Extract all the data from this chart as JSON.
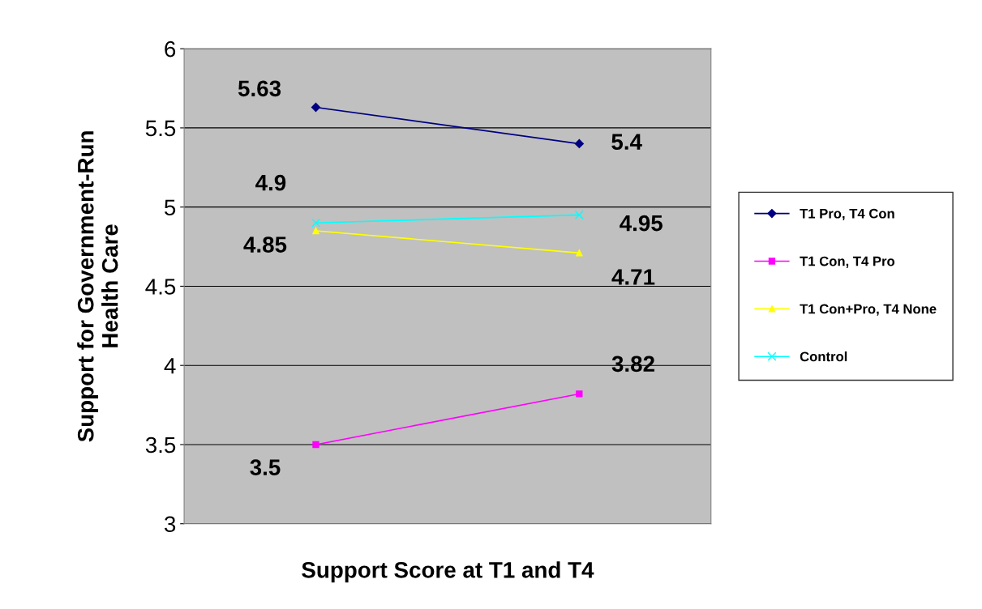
{
  "chart_data": {
    "type": "line",
    "xlabel": "Support Score at T1 and T4",
    "ylabel": "Support for Government-Run\nHealth Care",
    "categories": [
      null,
      null
    ],
    "ylim": [
      3,
      6
    ],
    "yticks": [
      3,
      3.5,
      4,
      4.5,
      5,
      5.5,
      6
    ],
    "grid": "y",
    "legend": "right",
    "data_labels": true,
    "line_style": "solid",
    "series": [
      {
        "name": "T1 Pro, T4 Con",
        "color": "#000080",
        "marker": "diamond",
        "values": [
          5.63,
          5.4
        ]
      },
      {
        "name": "T1 Con, T4 Pro",
        "color": "#ff00ff",
        "marker": "square",
        "values": [
          3.5,
          3.82
        ]
      },
      {
        "name": "T1 Con+Pro, T4 None",
        "color": "#ffff00",
        "marker": "triangle",
        "values": [
          4.85,
          4.71
        ]
      },
      {
        "name": "Control",
        "color": "#00ffff",
        "marker": "cross",
        "values": [
          4.9,
          4.95
        ]
      }
    ]
  }
}
